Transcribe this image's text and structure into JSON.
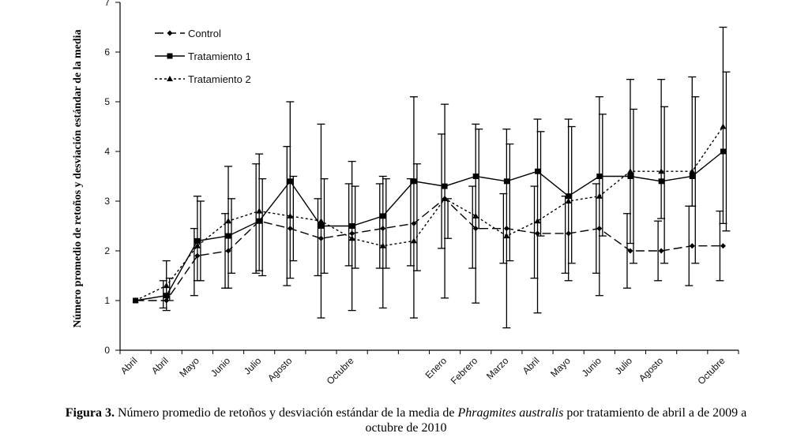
{
  "chart_data": {
    "type": "line",
    "title": "",
    "xlabel": "",
    "ylabel": "Número promedio de retoños y desviación estándar de la media",
    "ylim": [
      0,
      7
    ],
    "yticks": [
      0,
      1,
      2,
      3,
      4,
      5,
      6,
      7
    ],
    "grid": false,
    "legend_position": "top-left",
    "categories": [
      "Abril",
      "Abril",
      "Mayo",
      "Junio",
      "Julio",
      "Agosto",
      "",
      "Octubre",
      "",
      "",
      "Enero",
      "Febrero",
      "Marzo",
      "Abril",
      "Mayo",
      "Junio",
      "Julio",
      "Agosto",
      "",
      "Octubre"
    ],
    "series": [
      {
        "name": "Control",
        "style": "long-dash",
        "marker": "diamond",
        "values": [
          1.0,
          1.0,
          1.9,
          2.0,
          2.6,
          2.45,
          2.25,
          2.35,
          2.45,
          2.55,
          3.05,
          2.45,
          2.45,
          2.35,
          2.35,
          2.45,
          2.0,
          2.0,
          2.1,
          2.1
        ],
        "err_low": [
          1.0,
          0.85,
          1.1,
          1.25,
          1.55,
          1.3,
          1.5,
          1.7,
          1.65,
          1.7,
          2.05,
          1.65,
          1.75,
          1.45,
          1.55,
          1.55,
          1.25,
          1.4,
          1.3,
          1.4
        ],
        "err_high": [
          1.0,
          1.4,
          2.45,
          2.75,
          3.75,
          4.1,
          3.05,
          3.35,
          3.35,
          3.45,
          4.35,
          3.3,
          3.15,
          3.3,
          3.1,
          3.35,
          2.75,
          2.6,
          2.9,
          2.8
        ]
      },
      {
        "name": "Tratamiento 1",
        "style": "solid",
        "marker": "square",
        "values": [
          1.0,
          1.1,
          2.2,
          2.3,
          2.6,
          3.4,
          2.5,
          2.5,
          2.7,
          3.4,
          3.3,
          3.5,
          3.4,
          3.6,
          3.1,
          3.5,
          3.5,
          3.4,
          3.5,
          4.0
        ],
        "err_low": [
          1.0,
          0.8,
          1.4,
          1.25,
          1.6,
          1.45,
          0.65,
          0.8,
          0.85,
          0.65,
          1.05,
          0.95,
          0.45,
          0.75,
          1.4,
          1.1,
          2.15,
          2.65,
          2.9,
          2.55
        ],
        "err_high": [
          1.0,
          1.8,
          3.1,
          3.7,
          3.95,
          5.0,
          4.55,
          3.8,
          3.5,
          5.1,
          4.95,
          4.55,
          4.45,
          4.65,
          4.65,
          5.1,
          5.45,
          5.45,
          5.5,
          6.5
        ]
      },
      {
        "name": "Tratamiento 2",
        "style": "dotted",
        "marker": "triangle",
        "values": [
          1.0,
          1.3,
          2.1,
          2.6,
          2.8,
          2.7,
          2.6,
          2.25,
          2.1,
          2.2,
          3.05,
          2.7,
          2.3,
          2.6,
          3.0,
          3.1,
          3.6,
          3.6,
          3.6,
          4.5
        ],
        "err_low": [
          1.0,
          1.0,
          1.4,
          1.55,
          1.5,
          1.8,
          1.55,
          1.65,
          1.65,
          1.6,
          2.25,
          2.45,
          1.8,
          2.3,
          1.75,
          2.3,
          1.75,
          1.75,
          1.75,
          2.4
        ],
        "err_high": [
          1.0,
          1.45,
          3.0,
          3.05,
          3.45,
          3.5,
          3.45,
          3.3,
          3.45,
          3.75,
          3.05,
          4.45,
          4.15,
          4.4,
          4.5,
          4.75,
          4.85,
          4.9,
          5.1,
          5.6
        ]
      }
    ]
  },
  "caption": {
    "label": "Figura 3.",
    "text_before": " Número promedio de retoños y desviación estándar de la media de ",
    "species": "Phragmites australis",
    "text_after": " por tratamiento de abril a de 2009 a",
    "line2": "octubre de 2010"
  }
}
